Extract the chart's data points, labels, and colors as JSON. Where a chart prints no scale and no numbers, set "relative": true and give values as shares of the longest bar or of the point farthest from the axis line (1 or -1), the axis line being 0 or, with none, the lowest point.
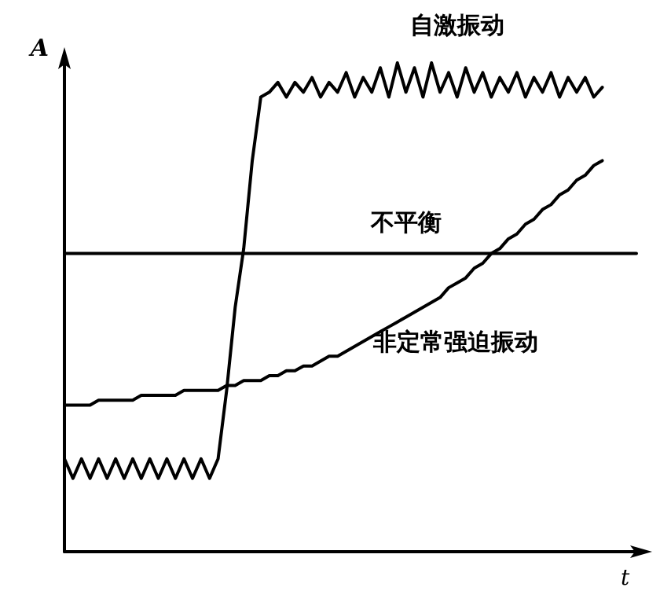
{
  "chart_data": {
    "type": "line",
    "relative": true,
    "xlabel": "t",
    "ylabel": "A",
    "legend": false,
    "grid": false,
    "line_style": "solid",
    "categories": [
      null,
      null,
      null,
      null,
      null,
      null,
      null,
      null,
      null,
      null,
      null,
      null,
      null,
      null,
      null,
      null,
      null,
      null,
      null,
      null,
      null,
      null,
      null,
      null,
      null,
      null,
      null,
      null,
      null,
      null,
      null,
      null,
      null,
      null,
      null,
      null,
      null,
      null,
      null,
      null,
      null,
      null,
      null,
      null,
      null,
      null,
      null,
      null,
      null,
      null,
      null,
      null,
      null,
      null,
      null,
      null,
      null,
      null,
      null,
      null,
      null,
      null,
      null,
      null,
      null,
      null,
      null,
      null
    ],
    "series": [
      {
        "name": "自激振动",
        "color": "#000000",
        "values": [
          0.19,
          0.15,
          0.19,
          0.15,
          0.19,
          0.15,
          0.19,
          0.15,
          0.19,
          0.15,
          0.19,
          0.15,
          0.19,
          0.15,
          0.19,
          0.15,
          0.19,
          0.15,
          0.19,
          0.33,
          0.5,
          0.62,
          0.8,
          0.93,
          0.94,
          0.96,
          0.93,
          0.96,
          0.94,
          0.97,
          0.93,
          0.96,
          0.94,
          0.98,
          0.93,
          0.97,
          0.94,
          0.99,
          0.93,
          1.0,
          0.94,
          0.99,
          0.93,
          1.0,
          0.94,
          0.98,
          0.93,
          0.99,
          0.94,
          0.98,
          0.93,
          0.97,
          0.94,
          0.98,
          0.93,
          0.97,
          0.94,
          0.98,
          0.93,
          0.97,
          0.94,
          0.97,
          0.93,
          0.95,
          null,
          null,
          null,
          null
        ]
      },
      {
        "name": "不平衡",
        "color": "#000000",
        "values": [
          0.61,
          0.61,
          0.61,
          0.61,
          0.61,
          0.61,
          0.61,
          0.61,
          0.61,
          0.61,
          0.61,
          0.61,
          0.61,
          0.61,
          0.61,
          0.61,
          0.61,
          0.61,
          0.61,
          0.61,
          0.61,
          0.61,
          0.61,
          0.61,
          0.61,
          0.61,
          0.61,
          0.61,
          0.61,
          0.61,
          0.61,
          0.61,
          0.61,
          0.61,
          0.61,
          0.61,
          0.61,
          0.61,
          0.61,
          0.61,
          0.61,
          0.61,
          0.61,
          0.61,
          0.61,
          0.61,
          0.61,
          0.61,
          0.61,
          0.61,
          0.61,
          0.61,
          0.61,
          0.61,
          0.61,
          0.61,
          0.61,
          0.61,
          0.61,
          0.61,
          0.61,
          0.61,
          0.61,
          0.61,
          0.61,
          0.61,
          0.61,
          0.61
        ]
      },
      {
        "name": "非定常强迫振动",
        "color": "#000000",
        "values": [
          0.3,
          0.3,
          0.3,
          0.3,
          0.31,
          0.31,
          0.31,
          0.31,
          0.31,
          0.32,
          0.32,
          0.32,
          0.32,
          0.32,
          0.33,
          0.33,
          0.33,
          0.33,
          0.33,
          0.34,
          0.34,
          0.35,
          0.35,
          0.35,
          0.36,
          0.36,
          0.37,
          0.37,
          0.38,
          0.38,
          0.39,
          0.4,
          0.4,
          0.41,
          0.42,
          0.43,
          0.44,
          0.45,
          0.46,
          0.47,
          0.48,
          0.49,
          0.5,
          0.51,
          0.52,
          0.54,
          0.55,
          0.56,
          0.58,
          0.59,
          0.61,
          0.62,
          0.64,
          0.65,
          0.67,
          0.68,
          0.7,
          0.71,
          0.73,
          0.74,
          0.76,
          0.77,
          0.79,
          0.8,
          null,
          null,
          null,
          null
        ]
      }
    ]
  }
}
